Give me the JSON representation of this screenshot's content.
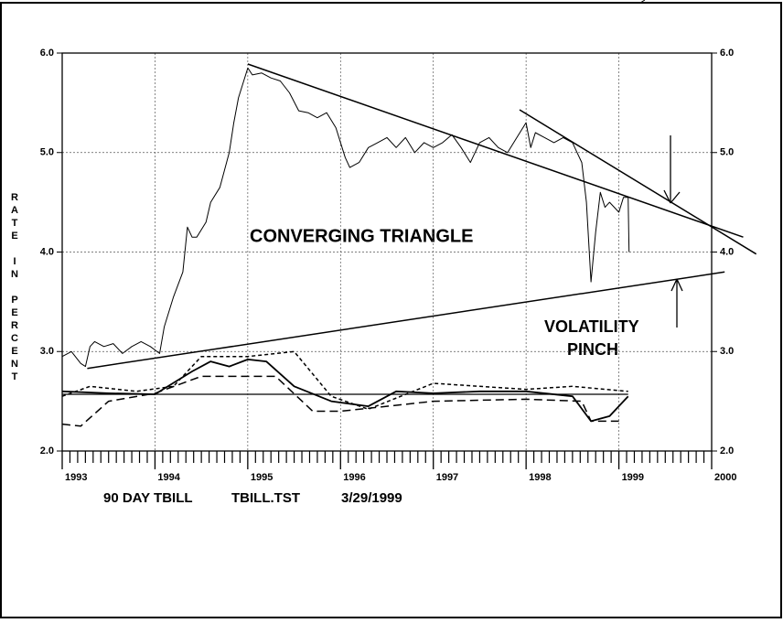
{
  "chart_data": {
    "type": "line",
    "ylabel": "RATE IN PERCENT",
    "xlim": [
      1993,
      2000
    ],
    "xticks": [
      1993,
      1994,
      1995,
      1996,
      1997,
      1998,
      1999,
      2000
    ],
    "ylim": [
      2.0,
      6.0
    ],
    "yticks": [
      {
        "value": 2,
        "label": "2.0"
      },
      {
        "value": 3,
        "label": "3.0"
      },
      {
        "value": 4,
        "label": "4.0"
      },
      {
        "value": 5,
        "label": "5.0"
      },
      {
        "value": 6,
        "label": "6.0"
      }
    ],
    "grid": true,
    "annotations": [
      "CONVERGING TRIANGLE",
      "VOLATILITY",
      "PINCH"
    ],
    "footer": [
      "90 DAY TBILL",
      "TBILL.TST",
      "3/29/1999"
    ],
    "series": [
      {
        "color": "#000000",
        "style": "solid",
        "width": 1,
        "x": [
          1993.0,
          1993.1,
          1993.2,
          1993.25,
          1993.3,
          1993.35,
          1993.45,
          1993.55,
          1993.65,
          1993.75,
          1993.85,
          1993.95,
          1994.05,
          1994.1,
          1994.2,
          1994.3,
          1994.35,
          1994.4,
          1994.45,
          1994.55,
          1994.6,
          1994.7,
          1994.8,
          1994.85,
          1994.9,
          1994.95,
          1995.0,
          1995.05,
          1995.15,
          1995.25,
          1995.35,
          1995.45,
          1995.55,
          1995.65,
          1995.75,
          1995.85,
          1995.95,
          1996.05,
          1996.1,
          1996.2,
          1996.3,
          1996.4,
          1996.5,
          1996.6,
          1996.7,
          1996.8,
          1996.9,
          1997.0,
          1997.1,
          1997.2,
          1997.3,
          1997.4,
          1997.5,
          1997.6,
          1997.7,
          1997.8,
          1997.9,
          1998.0,
          1998.05,
          1998.1,
          1998.2,
          1998.3,
          1998.4,
          1998.5,
          1998.55,
          1998.6,
          1998.65,
          1998.7,
          1998.75,
          1998.8,
          1998.85,
          1998.9,
          1999.0,
          1999.05,
          1999.1,
          1999.11
        ],
        "values": [
          2.95,
          3.0,
          2.88,
          2.85,
          3.05,
          3.1,
          3.05,
          3.08,
          2.98,
          3.05,
          3.1,
          3.05,
          2.98,
          3.25,
          3.55,
          3.8,
          4.25,
          4.15,
          4.15,
          4.3,
          4.5,
          4.65,
          5.0,
          5.3,
          5.55,
          5.7,
          5.85,
          5.78,
          5.8,
          5.75,
          5.72,
          5.6,
          5.42,
          5.4,
          5.35,
          5.4,
          5.25,
          4.95,
          4.85,
          4.9,
          5.05,
          5.1,
          5.15,
          5.05,
          5.15,
          5.0,
          5.1,
          5.05,
          5.1,
          5.18,
          5.05,
          4.9,
          5.1,
          5.15,
          5.05,
          5.0,
          5.15,
          5.3,
          5.05,
          5.2,
          5.15,
          5.1,
          5.15,
          5.1,
          5.0,
          4.9,
          4.5,
          3.7,
          4.2,
          4.6,
          4.45,
          4.5,
          4.4,
          4.55,
          4.55,
          4.0
        ]
      },
      {
        "color": "#000000",
        "style": "solid",
        "width": 1.5,
        "x": [
          1995.0,
          2000.34
        ],
        "values": [
          5.89,
          4.15
        ]
      },
      {
        "color": "#000000",
        "style": "solid",
        "width": 1.5,
        "x": [
          1997.93,
          2000.48
        ],
        "values": [
          5.43,
          3.98
        ]
      },
      {
        "color": "#000000",
        "style": "solid",
        "width": 1.5,
        "x": [
          1993.27,
          2000.14
        ],
        "values": [
          2.83,
          3.8
        ]
      },
      {
        "color": "#000000",
        "style": "solid",
        "width": 1.2,
        "x": [
          1993.0,
          1999.1
        ],
        "values": [
          2.57,
          2.57
        ]
      },
      {
        "color": "#000000",
        "style": "solid",
        "width": 1.8,
        "x": [
          1993.0,
          1993.5,
          1994.0,
          1994.4,
          1994.6,
          1994.8,
          1995.0,
          1995.2,
          1995.5,
          1995.9,
          1996.3,
          1996.6,
          1997.0,
          1997.5,
          1998.0,
          1998.5,
          1998.7,
          1998.9,
          1999.1
        ],
        "values": [
          2.6,
          2.58,
          2.57,
          2.8,
          2.9,
          2.85,
          2.92,
          2.9,
          2.65,
          2.5,
          2.45,
          2.6,
          2.58,
          2.6,
          2.6,
          2.55,
          2.3,
          2.35,
          2.55
        ]
      },
      {
        "color": "#000000",
        "style": "longdash",
        "width": 1.5,
        "x": [
          1993.0,
          1993.2,
          1993.5,
          1994.0,
          1994.5,
          1995.0,
          1995.3,
          1995.7,
          1996.0,
          1996.5,
          1997.0,
          1998.0,
          1998.6,
          1998.7,
          1999.0
        ],
        "values": [
          2.27,
          2.25,
          2.5,
          2.58,
          2.75,
          2.75,
          2.75,
          2.4,
          2.4,
          2.45,
          2.5,
          2.52,
          2.5,
          2.3,
          2.3
        ]
      },
      {
        "color": "#000000",
        "style": "shortdash",
        "width": 1.5,
        "x": [
          1993.0,
          1993.3,
          1993.8,
          1994.2,
          1994.5,
          1995.0,
          1995.5,
          1995.9,
          1996.3,
          1997.0,
          1998.0,
          1998.5,
          1999.1
        ],
        "values": [
          2.55,
          2.65,
          2.6,
          2.65,
          2.95,
          2.95,
          3.0,
          2.55,
          2.42,
          2.68,
          2.62,
          2.65,
          2.6
        ]
      }
    ]
  }
}
